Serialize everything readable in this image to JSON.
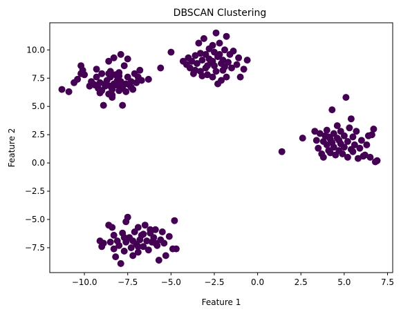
{
  "chart_data": {
    "type": "scatter",
    "title": "DBSCAN Clustering",
    "xlabel": "Feature 1",
    "ylabel": "Feature 2",
    "xlim": [
      -12.0,
      7.8
    ],
    "ylim": [
      -9.7,
      12.4
    ],
    "xticks": [
      -10.0,
      -7.5,
      -5.0,
      -2.5,
      0.0,
      2.5,
      5.0,
      7.5
    ],
    "xtick_labels": [
      "−10.0",
      "−7.5",
      "−5.0",
      "−2.5",
      "0.0",
      "2.5",
      "5.0",
      "7.5"
    ],
    "yticks": [
      -7.5,
      -5.0,
      -2.5,
      0.0,
      2.5,
      5.0,
      7.5,
      10.0
    ],
    "ytick_labels": [
      "−7.5",
      "−5.0",
      "−2.5",
      "0.0",
      "2.5",
      "5.0",
      "7.5",
      "10.0"
    ],
    "grid": false,
    "point_color": "#440154",
    "series": [
      {
        "points": [
          [
            -11.3,
            6.5
          ],
          [
            -10.9,
            6.3
          ],
          [
            -10.6,
            7.1
          ],
          [
            -10.4,
            7.4
          ],
          [
            -10.2,
            8.6
          ],
          [
            -10.1,
            8.2
          ],
          [
            -10.0,
            7.8
          ],
          [
            -10.2,
            7.9
          ],
          [
            -9.6,
            7.2
          ],
          [
            -9.5,
            7.0
          ],
          [
            -9.4,
            6.9
          ],
          [
            -9.3,
            7.6
          ],
          [
            -9.2,
            6.6
          ],
          [
            -9.1,
            7.1
          ],
          [
            -9.1,
            6.2
          ],
          [
            -9.0,
            7.9
          ],
          [
            -8.9,
            5.1
          ],
          [
            -8.8,
            6.8
          ],
          [
            -8.7,
            7.3
          ],
          [
            -8.6,
            9.0
          ],
          [
            -8.6,
            6.1
          ],
          [
            -8.5,
            7.6
          ],
          [
            -8.5,
            8.1
          ],
          [
            -8.4,
            6.5
          ],
          [
            -8.4,
            5.8
          ],
          [
            -8.3,
            7.0
          ],
          [
            -8.3,
            9.3
          ],
          [
            -8.2,
            6.9
          ],
          [
            -8.2,
            7.8
          ],
          [
            -8.1,
            7.3
          ],
          [
            -8.0,
            8.0
          ],
          [
            -8.0,
            6.4
          ],
          [
            -7.9,
            9.6
          ],
          [
            -7.9,
            7.2
          ],
          [
            -7.8,
            6.6
          ],
          [
            -7.8,
            5.1
          ],
          [
            -7.7,
            8.6
          ],
          [
            -7.6,
            7.0
          ],
          [
            -7.6,
            6.3
          ],
          [
            -7.5,
            9.2
          ],
          [
            -7.5,
            7.6
          ],
          [
            -7.4,
            6.9
          ],
          [
            -7.3,
            6.7
          ],
          [
            -7.2,
            6.5
          ],
          [
            -7.1,
            7.9
          ],
          [
            -7.0,
            7.1
          ],
          [
            -6.9,
            7.6
          ],
          [
            -6.8,
            8.2
          ],
          [
            -6.7,
            7.3
          ],
          [
            -6.3,
            7.4
          ],
          [
            -8.8,
            7.0
          ],
          [
            -9.7,
            6.8
          ],
          [
            -8.6,
            7.9
          ],
          [
            -7.9,
            6.8
          ],
          [
            -9.3,
            8.3
          ],
          [
            -8.0,
            7.7
          ],
          [
            -8.4,
            6.0
          ],
          [
            -7.3,
            7.2
          ],
          [
            -9.0,
            6.4
          ],
          [
            -8.5,
            6.8
          ],
          [
            -5.6,
            8.4
          ],
          [
            -5.0,
            9.8
          ],
          [
            -4.3,
            9.0
          ],
          [
            -4.1,
            8.7
          ],
          [
            -4.0,
            9.3
          ],
          [
            -3.9,
            8.4
          ],
          [
            -3.8,
            9.0
          ],
          [
            -3.7,
            7.9
          ],
          [
            -3.6,
            9.5
          ],
          [
            -3.5,
            8.8
          ],
          [
            -3.4,
            10.6
          ],
          [
            -3.3,
            8.1
          ],
          [
            -3.2,
            9.1
          ],
          [
            -3.2,
            7.7
          ],
          [
            -3.1,
            11.0
          ],
          [
            -3.0,
            9.6
          ],
          [
            -3.0,
            8.4
          ],
          [
            -2.9,
            7.8
          ],
          [
            -2.8,
            9.2
          ],
          [
            -2.8,
            10.1
          ],
          [
            -2.7,
            8.9
          ],
          [
            -2.6,
            7.6
          ],
          [
            -2.6,
            10.4
          ],
          [
            -2.5,
            8.6
          ],
          [
            -2.5,
            9.8
          ],
          [
            -2.4,
            11.5
          ],
          [
            -2.4,
            8.1
          ],
          [
            -2.3,
            9.4
          ],
          [
            -2.3,
            7.0
          ],
          [
            -2.2,
            10.6
          ],
          [
            -2.1,
            8.8
          ],
          [
            -2.1,
            7.3
          ],
          [
            -2.0,
            9.1
          ],
          [
            -2.0,
            8.2
          ],
          [
            -1.9,
            10.0
          ],
          [
            -1.8,
            11.2
          ],
          [
            -1.8,
            7.6
          ],
          [
            -1.7,
            8.9
          ],
          [
            -1.6,
            9.6
          ],
          [
            -1.5,
            8.4
          ],
          [
            -1.4,
            9.9
          ],
          [
            -1.2,
            8.7
          ],
          [
            -1.1,
            9.3
          ],
          [
            -1.0,
            7.6
          ],
          [
            -0.8,
            8.3
          ],
          [
            -0.6,
            9.1
          ],
          [
            -3.6,
            8.2
          ],
          [
            -2.9,
            8.6
          ],
          [
            -2.2,
            9.6
          ],
          [
            -3.3,
            9.7
          ],
          [
            -2.6,
            9.0
          ],
          [
            -1.9,
            8.5
          ],
          [
            1.4,
            1.0
          ],
          [
            2.6,
            2.2
          ],
          [
            3.3,
            2.8
          ],
          [
            3.4,
            2.0
          ],
          [
            3.5,
            1.3
          ],
          [
            3.6,
            2.6
          ],
          [
            3.7,
            0.8
          ],
          [
            3.8,
            1.9
          ],
          [
            3.8,
            0.5
          ],
          [
            3.9,
            2.4
          ],
          [
            4.0,
            1.6
          ],
          [
            4.0,
            2.9
          ],
          [
            4.1,
            1.1
          ],
          [
            4.2,
            2.1
          ],
          [
            4.2,
            0.9
          ],
          [
            4.3,
            4.7
          ],
          [
            4.3,
            1.8
          ],
          [
            4.4,
            2.6
          ],
          [
            4.4,
            1.4
          ],
          [
            4.5,
            0.7
          ],
          [
            4.6,
            3.3
          ],
          [
            4.6,
            2.2
          ],
          [
            4.7,
            1.1
          ],
          [
            4.8,
            1.7
          ],
          [
            4.8,
            2.8
          ],
          [
            4.9,
            0.8
          ],
          [
            5.0,
            1.4
          ],
          [
            5.0,
            2.4
          ],
          [
            5.1,
            5.8
          ],
          [
            5.2,
            1.9
          ],
          [
            5.2,
            0.5
          ],
          [
            5.3,
            3.1
          ],
          [
            5.4,
            1.2
          ],
          [
            5.4,
            3.9
          ],
          [
            5.5,
            2.3
          ],
          [
            5.6,
            1.6
          ],
          [
            5.7,
            2.8
          ],
          [
            5.8,
            0.4
          ],
          [
            5.9,
            1.3
          ],
          [
            6.0,
            2.0
          ],
          [
            6.1,
            0.6
          ],
          [
            6.2,
            0.7
          ],
          [
            6.3,
            1.6
          ],
          [
            6.4,
            2.4
          ],
          [
            6.5,
            0.5
          ],
          [
            6.6,
            2.5
          ],
          [
            6.7,
            3.0
          ],
          [
            6.8,
            0.1
          ],
          [
            6.9,
            0.2
          ],
          [
            4.1,
            2.3
          ],
          [
            4.7,
            2.0
          ],
          [
            5.5,
            1.0
          ],
          [
            -9.1,
            -6.9
          ],
          [
            -9.0,
            -7.4
          ],
          [
            -8.9,
            -7.1
          ],
          [
            -8.6,
            -5.5
          ],
          [
            -8.5,
            -7.0
          ],
          [
            -8.4,
            -5.7
          ],
          [
            -8.3,
            -6.4
          ],
          [
            -8.3,
            -7.6
          ],
          [
            -8.2,
            -8.3
          ],
          [
            -8.1,
            -6.9
          ],
          [
            -8.0,
            -7.3
          ],
          [
            -7.9,
            -8.9
          ],
          [
            -7.8,
            -6.2
          ],
          [
            -7.7,
            -7.8
          ],
          [
            -7.6,
            -5.2
          ],
          [
            -7.6,
            -7.0
          ],
          [
            -7.5,
            -4.8
          ],
          [
            -7.4,
            -6.6
          ],
          [
            -7.3,
            -7.5
          ],
          [
            -7.2,
            -8.2
          ],
          [
            -7.1,
            -6.1
          ],
          [
            -7.0,
            -7.2
          ],
          [
            -6.9,
            -5.7
          ],
          [
            -6.9,
            -7.9
          ],
          [
            -6.8,
            -6.8
          ],
          [
            -6.7,
            -6.4
          ],
          [
            -6.6,
            -7.4
          ],
          [
            -6.5,
            -5.5
          ],
          [
            -6.4,
            -6.9
          ],
          [
            -6.3,
            -7.7
          ],
          [
            -6.2,
            -6.2
          ],
          [
            -6.1,
            -7.0
          ],
          [
            -6.0,
            -6.6
          ],
          [
            -5.9,
            -5.9
          ],
          [
            -5.8,
            -7.3
          ],
          [
            -5.7,
            -8.6
          ],
          [
            -5.6,
            -6.8
          ],
          [
            -5.5,
            -6.1
          ],
          [
            -5.4,
            -7.1
          ],
          [
            -5.3,
            -8.2
          ],
          [
            -5.1,
            -6.5
          ],
          [
            -4.9,
            -7.6
          ],
          [
            -4.8,
            -5.1
          ],
          [
            -4.7,
            -7.6
          ],
          [
            -6.6,
            -6.3
          ],
          [
            -7.2,
            -6.9
          ],
          [
            -5.9,
            -7.1
          ],
          [
            -6.9,
            -7.4
          ],
          [
            -6.2,
            -5.9
          ],
          [
            -7.7,
            -6.6
          ]
        ]
      }
    ]
  }
}
